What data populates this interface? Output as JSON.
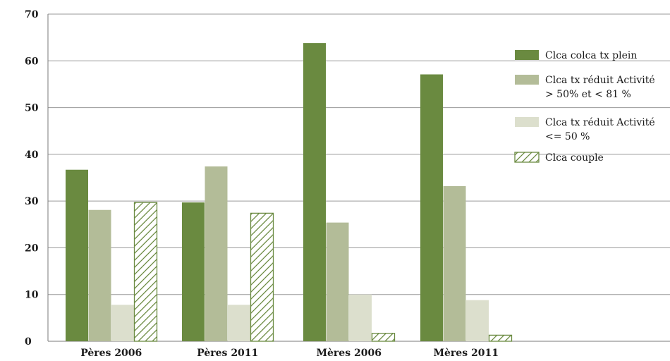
{
  "chart_data": {
    "type": "bar",
    "title": "",
    "xlabel": "",
    "ylabel": "",
    "ylim": [
      0,
      70
    ],
    "yticks": [
      0,
      10,
      20,
      30,
      40,
      50,
      60,
      70
    ],
    "grid": true,
    "legend_position": "right",
    "categories": [
      "Pères 2006",
      "Pères 2011",
      "Mères 2006",
      "Mères 2011"
    ],
    "series": [
      {
        "name": "Clca colca tx plein",
        "legend_lines": [
          "Clca colca tx plein"
        ],
        "color": "#6a8a40",
        "pattern": "solid",
        "values": [
          36.7,
          29.7,
          63.8,
          57.1
        ]
      },
      {
        "name": "Clca tx réduit Activité > 50% et < 81 %",
        "legend_lines": [
          "Clca tx réduit Activité",
          "> 50% et < 81 %"
        ],
        "color": "#b3bc98",
        "pattern": "solid",
        "values": [
          28.1,
          37.4,
          25.4,
          33.2
        ]
      },
      {
        "name": "Clca tx réduit Activité <= 50 %",
        "legend_lines": [
          "Clca tx réduit Activité",
          "<= 50 %"
        ],
        "color": "#dcdfcd",
        "pattern": "solid",
        "values": [
          7.8,
          7.8,
          10.0,
          8.8
        ]
      },
      {
        "name": "Clca couple",
        "legend_lines": [
          "Clca couple"
        ],
        "color": "#6a8a40",
        "pattern": "hatch",
        "values": [
          29.7,
          27.4,
          1.7,
          1.3
        ]
      }
    ]
  }
}
